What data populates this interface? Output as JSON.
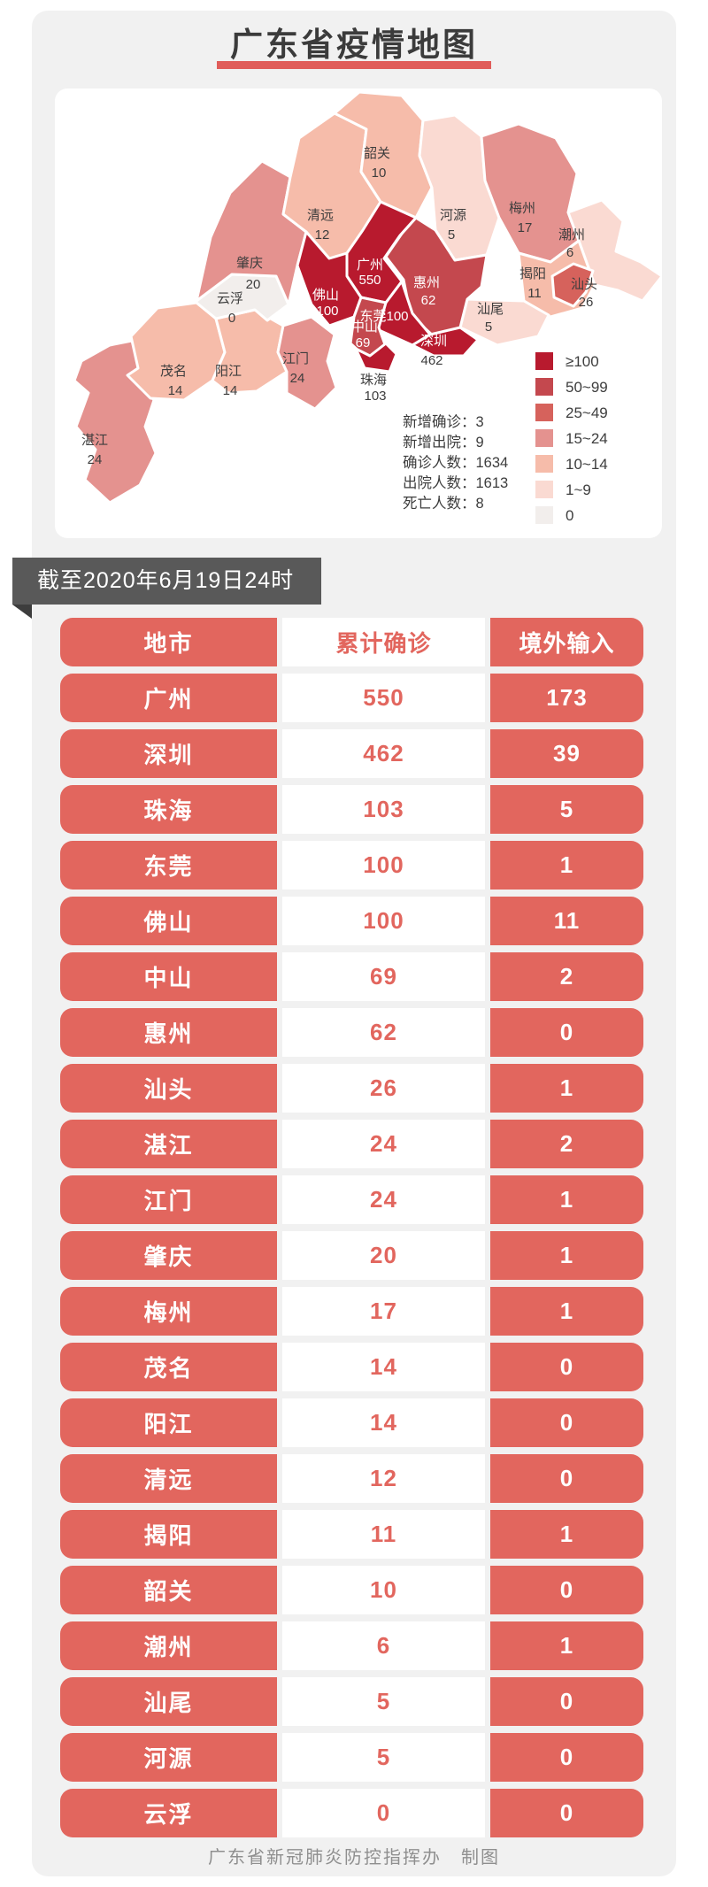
{
  "header": {
    "title": "广东省疫情地图"
  },
  "date_banner": "截至2020年6月19日24时",
  "footer": "广东省新冠肺炎防控指挥办　制图",
  "map": {
    "stats": [
      "新增确诊：3",
      "新增出院：9",
      "确诊人数：1634",
      "出院人数：1613",
      "死亡人数：8"
    ],
    "legend": [
      {
        "label": "≥100",
        "color": "#b81a2e"
      },
      {
        "label": "50~99",
        "color": "#c4484e"
      },
      {
        "label": "25~49",
        "color": "#d6625c"
      },
      {
        "label": "15~24",
        "color": "#e4928f"
      },
      {
        "label": "10~14",
        "color": "#f6bcaa"
      },
      {
        "label": "1~9",
        "color": "#fadad2"
      },
      {
        "label": "0",
        "color": "#f2eeec"
      }
    ],
    "regions": [
      {
        "id": "zhanjiang",
        "name": "湛江",
        "value": "24",
        "color": "#e4928f",
        "name_fill": "#3d3d3d",
        "value_fill": "#3d3d3d"
      },
      {
        "id": "maoming",
        "name": "茂名",
        "value": "14",
        "color": "#f6bcaa",
        "name_fill": "#3d3d3d",
        "value_fill": "#3d3d3d"
      },
      {
        "id": "yangjiang",
        "name": "阳江",
        "value": "14",
        "color": "#f6bcaa",
        "name_fill": "#3d3d3d",
        "value_fill": "#3d3d3d"
      },
      {
        "id": "jiangmen",
        "name": "江门",
        "value": "24",
        "color": "#e4928f",
        "name_fill": "#3d3d3d",
        "value_fill": "#3d3d3d"
      },
      {
        "id": "yunfu",
        "name": "云浮",
        "value": "0",
        "color": "#f2eeec",
        "name_fill": "#3d3d3d",
        "value_fill": "#3d3d3d"
      },
      {
        "id": "zhaoqing",
        "name": "肇庆",
        "value": "20",
        "color": "#e4928f",
        "name_fill": "#3d3d3d",
        "value_fill": "#3d3d3d"
      },
      {
        "id": "qingyuan",
        "name": "清远",
        "value": "12",
        "color": "#f6bcaa",
        "name_fill": "#3d3d3d",
        "value_fill": "#3d3d3d"
      },
      {
        "id": "shaoguan",
        "name": "韶关",
        "value": "10",
        "color": "#f6bcaa",
        "name_fill": "#3d3d3d",
        "value_fill": "#3d3d3d"
      },
      {
        "id": "heyuan",
        "name": "河源",
        "value": "5",
        "color": "#fadad2",
        "name_fill": "#3d3d3d",
        "value_fill": "#3d3d3d"
      },
      {
        "id": "meizhou",
        "name": "梅州",
        "value": "17",
        "color": "#e4928f",
        "name_fill": "#3d3d3d",
        "value_fill": "#3d3d3d"
      },
      {
        "id": "chaozhou",
        "name": "潮州",
        "value": "6",
        "color": "#fadad2",
        "name_fill": "#3d3d3d",
        "value_fill": "#3d3d3d"
      },
      {
        "id": "jieyang",
        "name": "揭阳",
        "value": "11",
        "color": "#f6bcaa",
        "name_fill": "#3d3d3d",
        "value_fill": "#3d3d3d"
      },
      {
        "id": "shantou",
        "name": "汕头",
        "value": "26",
        "color": "#d6625c",
        "name_fill": "#3d3d3d",
        "value_fill": "#3d3d3d"
      },
      {
        "id": "shanwei",
        "name": "汕尾",
        "value": "5",
        "color": "#fadad2",
        "name_fill": "#3d3d3d",
        "value_fill": "#3d3d3d"
      },
      {
        "id": "huizhou",
        "name": "惠州",
        "value": "62",
        "color": "#c4484e",
        "name_fill": "#ffffff",
        "value_fill": "#ffffff"
      },
      {
        "id": "guangzhou",
        "name": "广州",
        "value": "550",
        "color": "#b81a2e",
        "name_fill": "#ffffff",
        "value_fill": "#ffffff"
      },
      {
        "id": "foshan",
        "name": "佛山",
        "value": "100",
        "color": "#b81a2e",
        "name_fill": "#ffffff",
        "value_fill": "#ffffff"
      },
      {
        "id": "dongguan",
        "name": "东莞100",
        "value": "",
        "color": "#b81a2e",
        "name_fill": "#ffffff",
        "value_fill": "#ffffff"
      },
      {
        "id": "shenzhen",
        "name": "深圳",
        "value": "462",
        "color": "#b81a2e",
        "name_fill": "#ffffff",
        "value_fill": "#3d3d3d"
      },
      {
        "id": "zhongshan",
        "name": "中山",
        "value": "69",
        "color": "#c4484e",
        "name_fill": "#ffffff",
        "value_fill": "#ffffff"
      },
      {
        "id": "zhuhai",
        "name": "珠海",
        "value": "103",
        "color": "#b81a2e",
        "name_fill": "#3d3d3d",
        "value_fill": "#3d3d3d"
      }
    ]
  },
  "table": {
    "headers": [
      "地市",
      "累计确诊",
      "境外输入"
    ],
    "rows": [
      [
        "广州",
        "550",
        "173"
      ],
      [
        "深圳",
        "462",
        "39"
      ],
      [
        "珠海",
        "103",
        "5"
      ],
      [
        "东莞",
        "100",
        "1"
      ],
      [
        "佛山",
        "100",
        "11"
      ],
      [
        "中山",
        "69",
        "2"
      ],
      [
        "惠州",
        "62",
        "0"
      ],
      [
        "汕头",
        "26",
        "1"
      ],
      [
        "湛江",
        "24",
        "2"
      ],
      [
        "江门",
        "24",
        "1"
      ],
      [
        "肇庆",
        "20",
        "1"
      ],
      [
        "梅州",
        "17",
        "1"
      ],
      [
        "茂名",
        "14",
        "0"
      ],
      [
        "阳江",
        "14",
        "0"
      ],
      [
        "清远",
        "12",
        "0"
      ],
      [
        "揭阳",
        "11",
        "1"
      ],
      [
        "韶关",
        "10",
        "0"
      ],
      [
        "潮州",
        "6",
        "1"
      ],
      [
        "汕尾",
        "5",
        "0"
      ],
      [
        "河源",
        "5",
        "0"
      ],
      [
        "云浮",
        "0",
        "0"
      ]
    ]
  },
  "chart_data": [
    {
      "type": "heatmap",
      "subtype": "choropleth_map",
      "title": "广东省疫情地图",
      "value_label": "累计确诊",
      "regions": {
        "广州": 550,
        "深圳": 462,
        "珠海": 103,
        "东莞": 100,
        "佛山": 100,
        "中山": 69,
        "惠州": 62,
        "汕头": 26,
        "湛江": 24,
        "江门": 24,
        "肇庆": 20,
        "梅州": 17,
        "茂名": 14,
        "阳江": 14,
        "清远": 12,
        "揭阳": 11,
        "韶关": 10,
        "潮州": 6,
        "汕尾": 5,
        "河源": 5,
        "云浮": 0
      },
      "legend_bins": [
        "≥100",
        "50~99",
        "25~49",
        "15~24",
        "10~14",
        "1~9",
        "0"
      ],
      "legend_position": "bottom-right",
      "annotations": [
        "新增确诊：3",
        "新增出院：9",
        "确诊人数：1634",
        "出院人数：1613",
        "死亡人数：8"
      ]
    },
    {
      "type": "table",
      "columns": [
        "地市",
        "累计确诊",
        "境外输入"
      ],
      "rows": [
        [
          "广州",
          550,
          173
        ],
        [
          "深圳",
          462,
          39
        ],
        [
          "珠海",
          103,
          5
        ],
        [
          "东莞",
          100,
          1
        ],
        [
          "佛山",
          100,
          11
        ],
        [
          "中山",
          69,
          2
        ],
        [
          "惠州",
          62,
          0
        ],
        [
          "汕头",
          26,
          1
        ],
        [
          "湛江",
          24,
          2
        ],
        [
          "江门",
          24,
          1
        ],
        [
          "肇庆",
          20,
          1
        ],
        [
          "梅州",
          17,
          1
        ],
        [
          "茂名",
          14,
          0
        ],
        [
          "阳江",
          14,
          0
        ],
        [
          "清远",
          12,
          0
        ],
        [
          "揭阳",
          11,
          1
        ],
        [
          "韶关",
          10,
          0
        ],
        [
          "潮州",
          6,
          1
        ],
        [
          "汕尾",
          5,
          0
        ],
        [
          "河源",
          5,
          0
        ],
        [
          "云浮",
          0,
          0
        ]
      ]
    }
  ]
}
